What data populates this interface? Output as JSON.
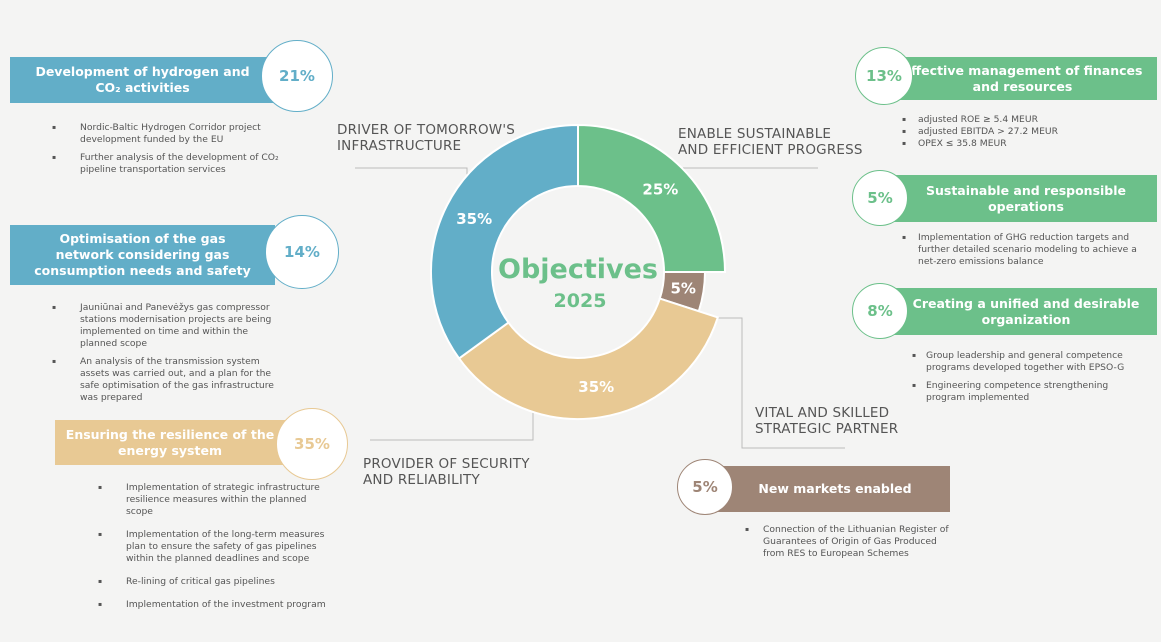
{
  "colors": {
    "blue": "#62aec8",
    "green": "#6cc08a",
    "tan": "#e8c994",
    "brown": "#9e8576"
  },
  "center": {
    "title": "Objectives",
    "year": "2025"
  },
  "ring": [
    {
      "label": "25%",
      "value": 25,
      "color": "#6cc08a"
    },
    {
      "label": "5%",
      "value": 5,
      "color": "#9e8576"
    },
    {
      "label": "35%",
      "value": 35,
      "color": "#e8c994"
    },
    {
      "label": "35%",
      "value": 35,
      "color": "#62aec8"
    }
  ],
  "captions": {
    "driver": [
      "DRIVER OF TOMORROW'S",
      "INFRASTRUCTURE"
    ],
    "enable": [
      "ENABLE SUSTAINABLE",
      "AND EFFICIENT PROGRESS"
    ],
    "vital": [
      "VITAL AND SKILLED",
      "STRATEGIC PARTNER"
    ],
    "provider": [
      "PROVIDER OF SECURITY",
      "AND RELIABILITY"
    ]
  },
  "objectives": {
    "hydrogen": {
      "title": "Development of hydrogen and CO₂ activities",
      "pct": "21%",
      "items": [
        "Nordic-Baltic Hydrogen Corridor project development funded by the EU",
        "Further analysis of the development of CO₂ pipeline transportation services"
      ]
    },
    "network": {
      "title": "Optimisation of the gas network considering gas consumption needs and safety",
      "pct": "14%",
      "items": [
        "Jauniūnai and Panevėžys gas compressor stations modernisation projects are being implemented on time and within the planned scope",
        "An analysis of the transmission system assets was carried out, and a plan for the safe optimisation of the gas infrastructure was prepared"
      ]
    },
    "resilience": {
      "title": "Ensuring the resilience of the energy system",
      "pct": "35%",
      "items": [
        "Implementation of strategic infrastructure resilience measures within the planned scope",
        "Implementation of the long-term measures plan to ensure the safety of gas pipelines within the planned deadlines and scope",
        "Re-lining of critical gas pipelines",
        "Implementation of the investment program"
      ]
    },
    "finances": {
      "title": "Effective management of finances and resources",
      "pct": "13%",
      "items": [
        "adjusted ROE ≥ 5.4 MEUR",
        "adjusted EBITDA > 27.2 MEUR",
        "OPEX ≤ 35.8 MEUR"
      ]
    },
    "sustainable": {
      "title": "Sustainable and responsible operations",
      "pct": "5%",
      "items": [
        "Implementation of GHG reduction targets and further detailed scenario modeling to achieve a net-zero emissions balance"
      ]
    },
    "organization": {
      "title": "Creating a unified and desirable organization",
      "pct": "8%",
      "items": [
        "Group leadership and general competence programs developed together with EPSO-G",
        "Engineering competence strengthening program implemented"
      ]
    },
    "markets": {
      "title": "New markets enabled",
      "pct": "5%",
      "items": [
        "Connection of the Lithuanian Register of Guarantees of Origin of Gas Produced from RES to European Schemes"
      ]
    }
  }
}
